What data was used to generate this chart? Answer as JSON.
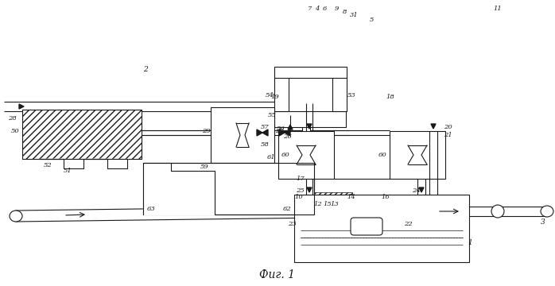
{
  "bg": "#ffffff",
  "lc": "#1a1a1a",
  "lw": 0.8,
  "caption": "Фиг. 1"
}
